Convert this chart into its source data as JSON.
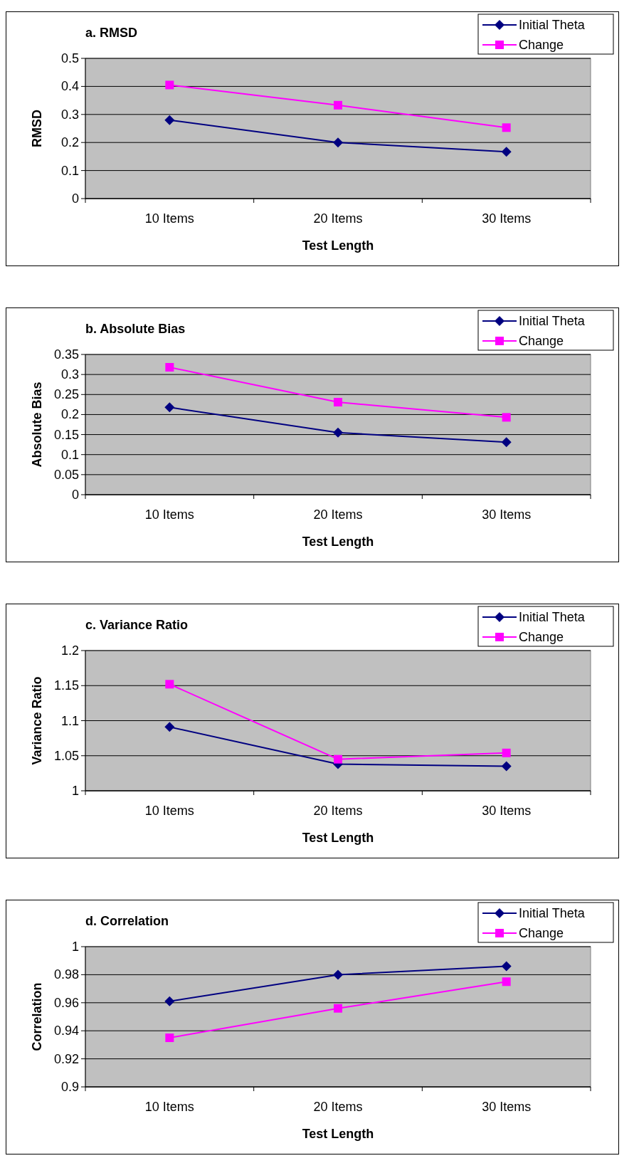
{
  "chart_data": [
    {
      "type": "line",
      "title": "a. RMSD",
      "xlabel": "Test Length",
      "ylabel": "RMSD",
      "categories": [
        "10 Items",
        "20 Items",
        "30 Items"
      ],
      "ylim": [
        0,
        0.5
      ],
      "yticks": [
        0,
        0.1,
        0.2,
        0.3,
        0.4,
        0.5
      ],
      "grid": "y",
      "legend": "top right",
      "series": [
        {
          "name": "Initial Theta",
          "color": "#000080",
          "marker": "diamond",
          "values": [
            0.28,
            0.2,
            0.167
          ]
        },
        {
          "name": "Change",
          "color": "#ff00ff",
          "marker": "square",
          "values": [
            0.405,
            0.333,
            0.253
          ]
        }
      ]
    },
    {
      "type": "line",
      "title": "b. Absolute Bias",
      "xlabel": "Test Length",
      "ylabel": "Absolute Bias",
      "categories": [
        "10 Items",
        "20 Items",
        "30 Items"
      ],
      "ylim": [
        0,
        0.35
      ],
      "yticks": [
        0,
        0.05,
        0.1,
        0.15,
        0.2,
        0.25,
        0.3,
        0.35
      ],
      "grid": "y",
      "legend": "top right",
      "series": [
        {
          "name": "Initial Theta",
          "color": "#000080",
          "marker": "diamond",
          "values": [
            0.218,
            0.155,
            0.131
          ]
        },
        {
          "name": "Change",
          "color": "#ff00ff",
          "marker": "square",
          "values": [
            0.318,
            0.231,
            0.193
          ]
        }
      ]
    },
    {
      "type": "line",
      "title": "c. Variance Ratio",
      "xlabel": "Test Length",
      "ylabel": "Variance Ratio",
      "categories": [
        "10 Items",
        "20 Items",
        "30 Items"
      ],
      "ylim": [
        1,
        1.2
      ],
      "yticks": [
        1,
        1.05,
        1.1,
        1.15,
        1.2
      ],
      "grid": "y",
      "legend": "top right",
      "series": [
        {
          "name": "Initial Theta",
          "color": "#000080",
          "marker": "diamond",
          "values": [
            1.091,
            1.038,
            1.035
          ]
        },
        {
          "name": "Change",
          "color": "#ff00ff",
          "marker": "square",
          "values": [
            1.152,
            1.045,
            1.054
          ]
        }
      ]
    },
    {
      "type": "line",
      "title": "d. Correlation",
      "xlabel": "Test Length",
      "ylabel": "Correlation",
      "categories": [
        "10 Items",
        "20 Items",
        "30 Items"
      ],
      "ylim": [
        0.9,
        1
      ],
      "yticks": [
        0.9,
        0.92,
        0.94,
        0.96,
        0.98,
        1
      ],
      "grid": "y",
      "legend": "top right",
      "series": [
        {
          "name": "Initial Theta",
          "color": "#000080",
          "marker": "diamond",
          "values": [
            0.961,
            0.98,
            0.986
          ]
        },
        {
          "name": "Change",
          "color": "#ff00ff",
          "marker": "square",
          "values": [
            0.935,
            0.956,
            0.975
          ]
        }
      ]
    }
  ]
}
